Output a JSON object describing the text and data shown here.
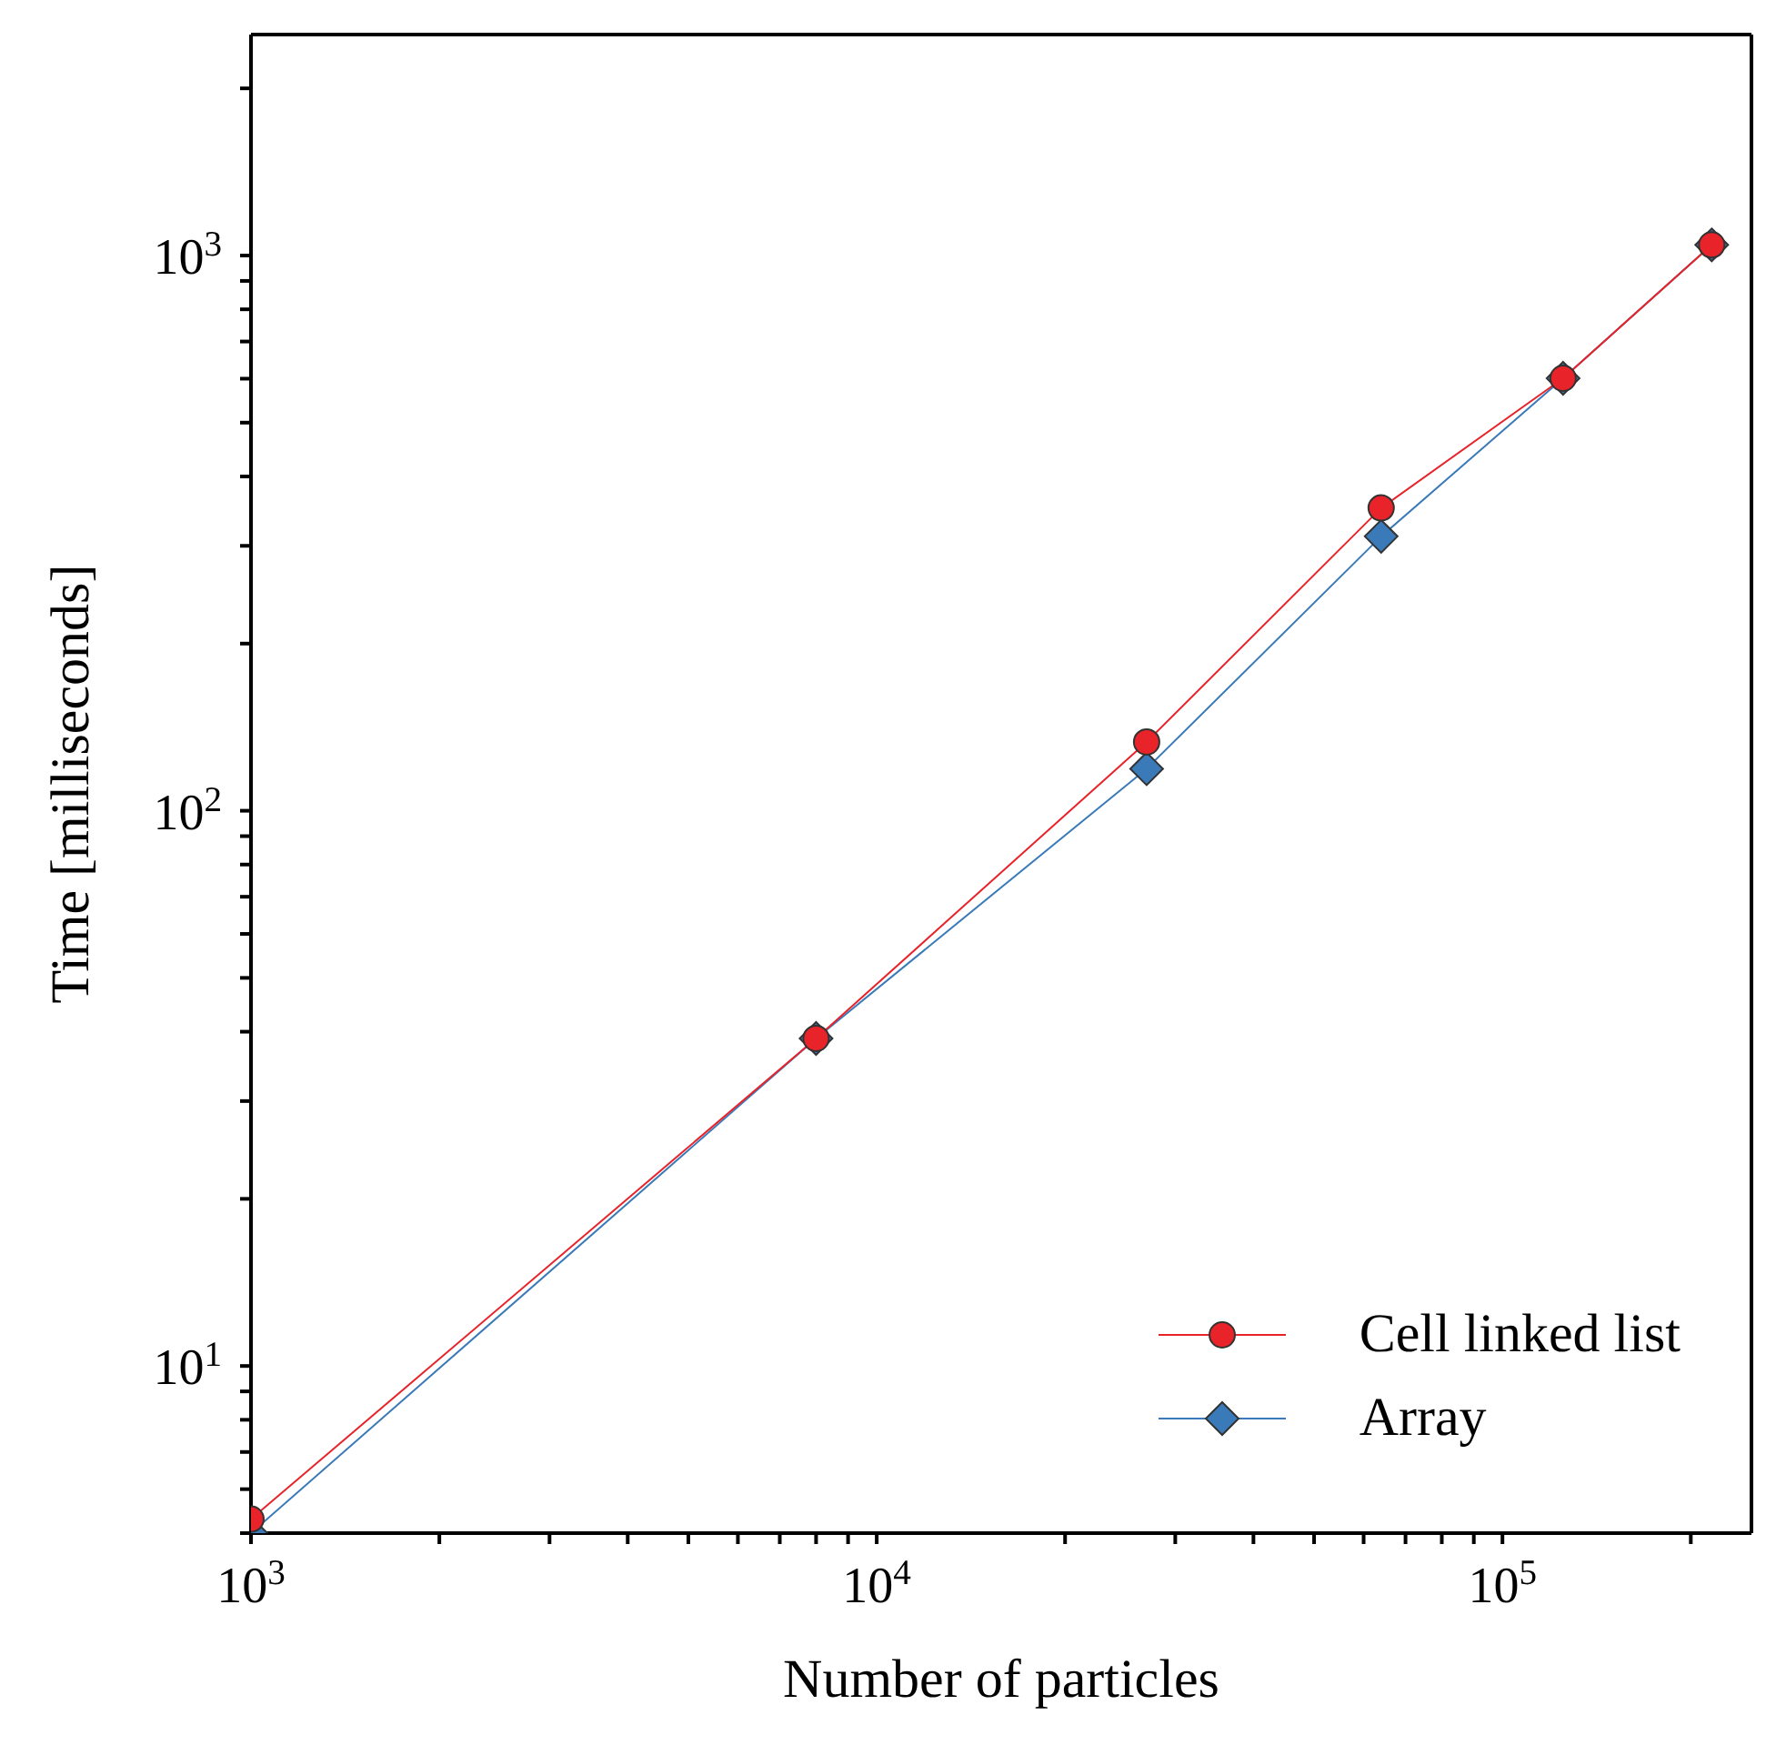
{
  "chart_data": {
    "type": "line",
    "xlabel": "Number of particles",
    "ylabel": "Time [milliseconds]",
    "x": [
      1000,
      8000,
      27000,
      64000,
      125000,
      216000
    ],
    "series": [
      {
        "name": "Cell linked list",
        "color": "#e8232a",
        "marker": "circle",
        "values": [
          5.3,
          38.9,
          133,
          351,
          601,
          1045
        ]
      },
      {
        "name": "Array",
        "color": "#3a7ab8",
        "marker": "diamond",
        "values": [
          5.0,
          38.9,
          119,
          312,
          601,
          1045
        ]
      }
    ],
    "log": "xy",
    "xlim": [
      1000,
      250000
    ],
    "ylim": [
      5,
      2500
    ],
    "xticks": [
      {
        "value": 1000,
        "label": "10$^{3}$"
      },
      {
        "value": 2000,
        "label": null
      },
      {
        "value": 3000,
        "label": null
      },
      {
        "value": 4000,
        "label": null
      },
      {
        "value": 5000,
        "label": null
      },
      {
        "value": 6000,
        "label": null
      },
      {
        "value": 7000,
        "label": null
      },
      {
        "value": 8000,
        "label": null
      },
      {
        "value": 9000,
        "label": null
      },
      {
        "value": 10000,
        "label": "10$^{4}$"
      },
      {
        "value": 20000,
        "label": null
      },
      {
        "value": 30000,
        "label": null
      },
      {
        "value": 40000,
        "label": null
      },
      {
        "value": 50000,
        "label": null
      },
      {
        "value": 60000,
        "label": null
      },
      {
        "value": 70000,
        "label": null
      },
      {
        "value": 80000,
        "label": null
      },
      {
        "value": 90000,
        "label": null
      },
      {
        "value": 100000,
        "label": "10$^{5}$"
      },
      {
        "value": 200000,
        "label": null
      }
    ],
    "yticks": [
      {
        "value": 5,
        "label": null
      },
      {
        "value": 6,
        "label": null
      },
      {
        "value": 7,
        "label": null
      },
      {
        "value": 8,
        "label": null
      },
      {
        "value": 9,
        "label": null
      },
      {
        "value": 10,
        "label": "10$^{1}$"
      },
      {
        "value": 20,
        "label": null
      },
      {
        "value": 30,
        "label": null
      },
      {
        "value": 40,
        "label": null
      },
      {
        "value": 50,
        "label": null
      },
      {
        "value": 60,
        "label": null
      },
      {
        "value": 70,
        "label": null
      },
      {
        "value": 80,
        "label": null
      },
      {
        "value": 90,
        "label": null
      },
      {
        "value": 100,
        "label": "10$^{2}$"
      },
      {
        "value": 200,
        "label": null
      },
      {
        "value": 300,
        "label": null
      },
      {
        "value": 400,
        "label": null
      },
      {
        "value": 500,
        "label": null
      },
      {
        "value": 600,
        "label": null
      },
      {
        "value": 700,
        "label": null
      },
      {
        "value": 800,
        "label": null
      },
      {
        "value": 900,
        "label": null
      },
      {
        "value": 1000,
        "label": "10$^{3}$"
      },
      {
        "value": 2000,
        "label": null
      }
    ],
    "grid": false,
    "legend": "bottom right"
  }
}
